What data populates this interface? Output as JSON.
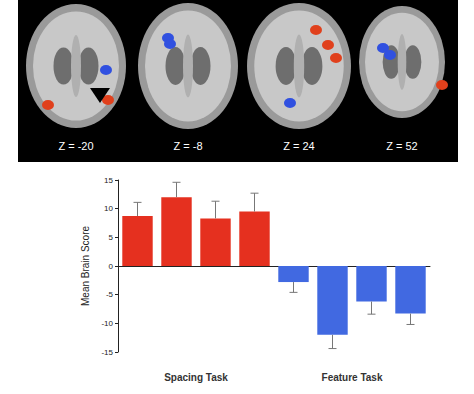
{
  "chart_data": {
    "type": "bar",
    "annotations": [
      "Z = -20",
      "Z = -8",
      "Z = 24",
      "Z = 52"
    ],
    "ylabel": "Mean Brain Score",
    "categories": [
      null,
      "Spacing Task",
      null,
      null,
      null,
      "Feature Task",
      null,
      null
    ],
    "values": [
      8.7,
      12,
      8.3,
      9.5,
      -2.8,
      -12,
      -6.2,
      -8.3
    ],
    "errors": [
      2.4,
      2.6,
      3.0,
      3.2,
      1.8,
      2.4,
      2.2,
      1.9
    ],
    "colors": [
      "#e5301f",
      "#e5301f",
      "#e5301f",
      "#e5301f",
      "#4169e1",
      "#4169e1",
      "#4169e1",
      "#4169e1"
    ],
    "ylim": [
      -15,
      15
    ],
    "yticks": [
      -15,
      -10,
      -5,
      0,
      5,
      10,
      15
    ],
    "grid": false
  }
}
